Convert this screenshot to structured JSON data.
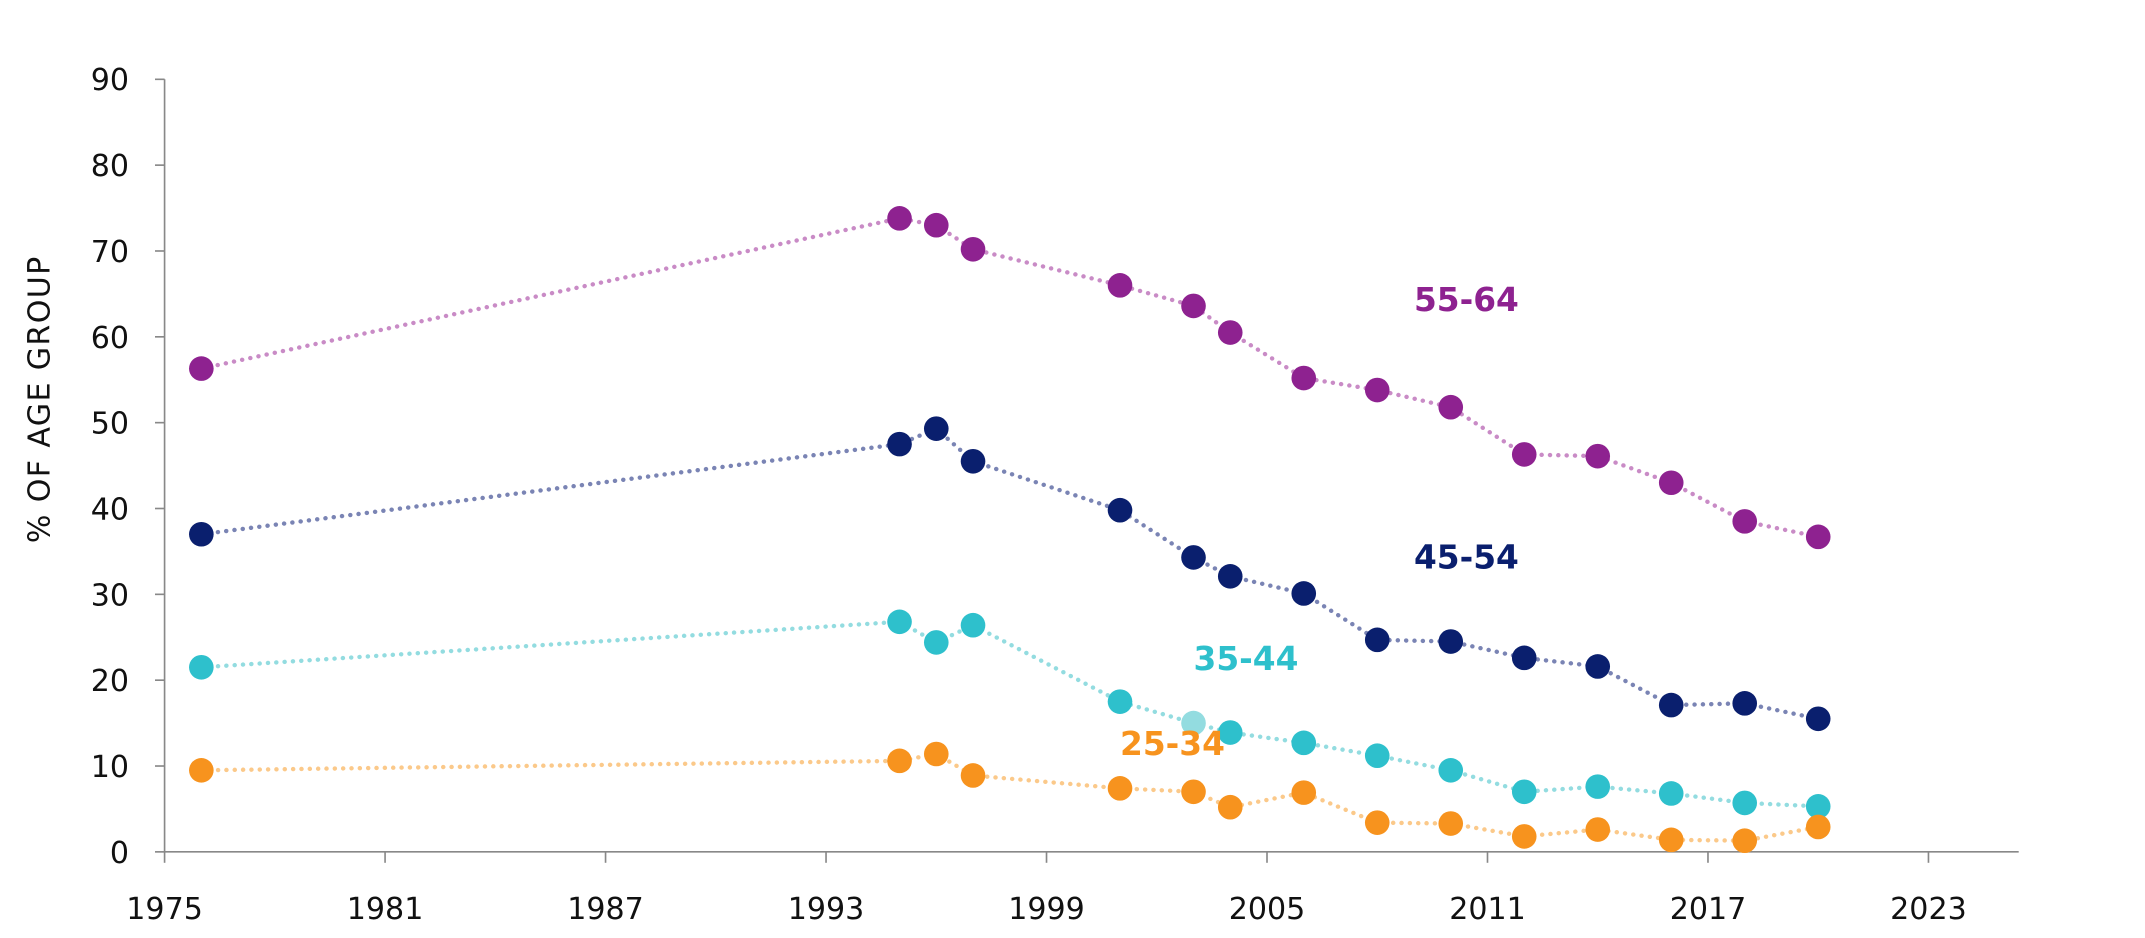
{
  "chart_data": {
    "type": "line",
    "title": "",
    "xlabel": "",
    "ylabel": "% OF AGE GROUP",
    "xlim": [
      1975,
      2025
    ],
    "ylim": [
      0,
      90
    ],
    "xticks": [
      1975,
      1981,
      1987,
      1993,
      1999,
      2005,
      2011,
      2017,
      2023
    ],
    "yticks": [
      0,
      10,
      20,
      30,
      40,
      50,
      60,
      70,
      80,
      90
    ],
    "grid": false,
    "legend": "inline labels",
    "x": [
      1976,
      1995,
      1996,
      1997,
      2001,
      2003,
      2004,
      2006,
      2008,
      2010,
      2012,
      2014,
      2016,
      2018,
      2020
    ],
    "series": [
      {
        "name": "55-64",
        "color": "#8E2290",
        "line_color": "#C98BC6",
        "label_at": [
          2009,
          63
        ],
        "values": [
          56.3,
          73.8,
          73.0,
          70.2,
          66.0,
          63.6,
          60.5,
          55.2,
          53.8,
          51.8,
          46.3,
          46.1,
          43.0,
          38.5,
          36.7
        ]
      },
      {
        "name": "45-54",
        "color": "#0A1F6E",
        "line_color": "#7A84B4",
        "label_at": [
          2009,
          33
        ],
        "values": [
          37.0,
          47.5,
          49.3,
          45.5,
          39.8,
          34.3,
          32.1,
          30.1,
          24.7,
          24.5,
          22.6,
          21.6,
          17.1,
          17.3,
          15.5
        ]
      },
      {
        "name": "35-44",
        "color": "#2EC0CC",
        "line_color": "#93DCE0",
        "label_at": [
          2003,
          21.2
        ],
        "values": [
          21.5,
          26.8,
          24.4,
          26.4,
          17.5,
          15.0,
          13.9,
          12.7,
          11.2,
          9.5,
          7.0,
          7.6,
          6.8,
          5.7,
          5.3
        ]
      },
      {
        "name": "25-34",
        "color": "#F7931E",
        "line_color": "#FBC98A",
        "label_at": [
          2001,
          11.3
        ],
        "values": [
          9.5,
          10.6,
          11.4,
          8.9,
          7.4,
          7.0,
          5.2,
          6.9,
          3.4,
          3.3,
          1.8,
          2.6,
          1.4,
          1.3,
          2.9
        ]
      }
    ]
  }
}
